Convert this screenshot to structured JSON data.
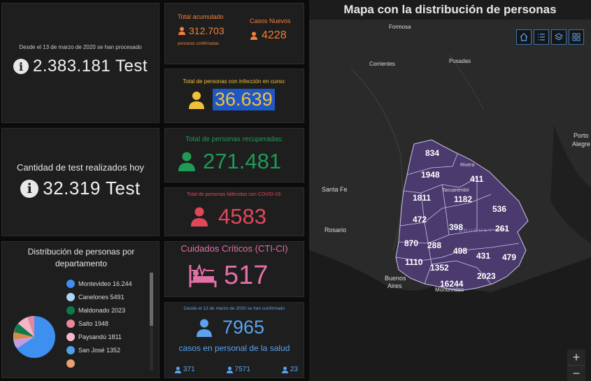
{
  "tests_total": {
    "intro": "Desde el 13 de marzo de 2020 se han procesado",
    "value": "2.383.181 Test"
  },
  "tests_today": {
    "label": "Cantidad de test realizados hoy",
    "value": "32.319 Test"
  },
  "distribution": {
    "title": "Distribución de personas por departamento",
    "legend": [
      {
        "label": "Montevideo",
        "value": "16.244",
        "color": "#3d8ff0"
      },
      {
        "label": "Canelones",
        "value": "5491",
        "color": "#a9d4f2"
      },
      {
        "label": "Maldonado",
        "value": "2023",
        "color": "#0e7a4c"
      },
      {
        "label": "Salto",
        "value": "1948",
        "color": "#e7889a"
      },
      {
        "label": "Paysandú",
        "value": "1811",
        "color": "#f2b8c8"
      },
      {
        "label": "San José",
        "value": "1352",
        "color": "#4da3e8"
      }
    ],
    "partial_last_color": "#e9a070"
  },
  "cases": {
    "total_label": "Total acumulado",
    "total_value": "312.703",
    "total_sub": "personas confirmadas",
    "new_label": "Casos Nuevos",
    "new_value": "4228",
    "color": "#f0813a"
  },
  "active": {
    "label": "Total de personas con infección en curso:",
    "value": "36.639",
    "color": "#f2c038",
    "highlight": "#1f57c4"
  },
  "recovered": {
    "label": "Total de personas recuperadas:",
    "value": "271.481",
    "color": "#1f9b55"
  },
  "deceased": {
    "label": "Total de personas fallecidas con COVID-19:",
    "value": "4583",
    "color": "#e0485a"
  },
  "icu": {
    "label": "Cuidados Críticos (CTI-CI)",
    "value": "517",
    "color": "#e070a6"
  },
  "health": {
    "intro": "Desde el 13 de marzo de 2020 se han confirmado",
    "value": "7965",
    "label": "casos en personal de la salud",
    "sub": [
      "371",
      "7571",
      "23"
    ],
    "color": "#5ba3ef"
  },
  "map": {
    "title": "Mapa con la distribución de personas",
    "cities": [
      "Formosa",
      "Corrientes",
      "Posadas",
      "Porto",
      "Alegre",
      "Santa Fe",
      "Rosario",
      "Buenos",
      "Aires",
      "Rivera",
      "Tacuarembó",
      "Montevideo",
      "URUGUAY"
    ],
    "departments": [
      "834",
      "1948",
      "411",
      "1811",
      "1182",
      "536",
      "472",
      "398",
      "261",
      "870",
      "288",
      "498",
      "431",
      "479",
      "1110",
      "1352",
      "2023",
      "16244"
    ],
    "zoom_in": "+",
    "zoom_out": "−",
    "fill": "#4a3a6e"
  }
}
